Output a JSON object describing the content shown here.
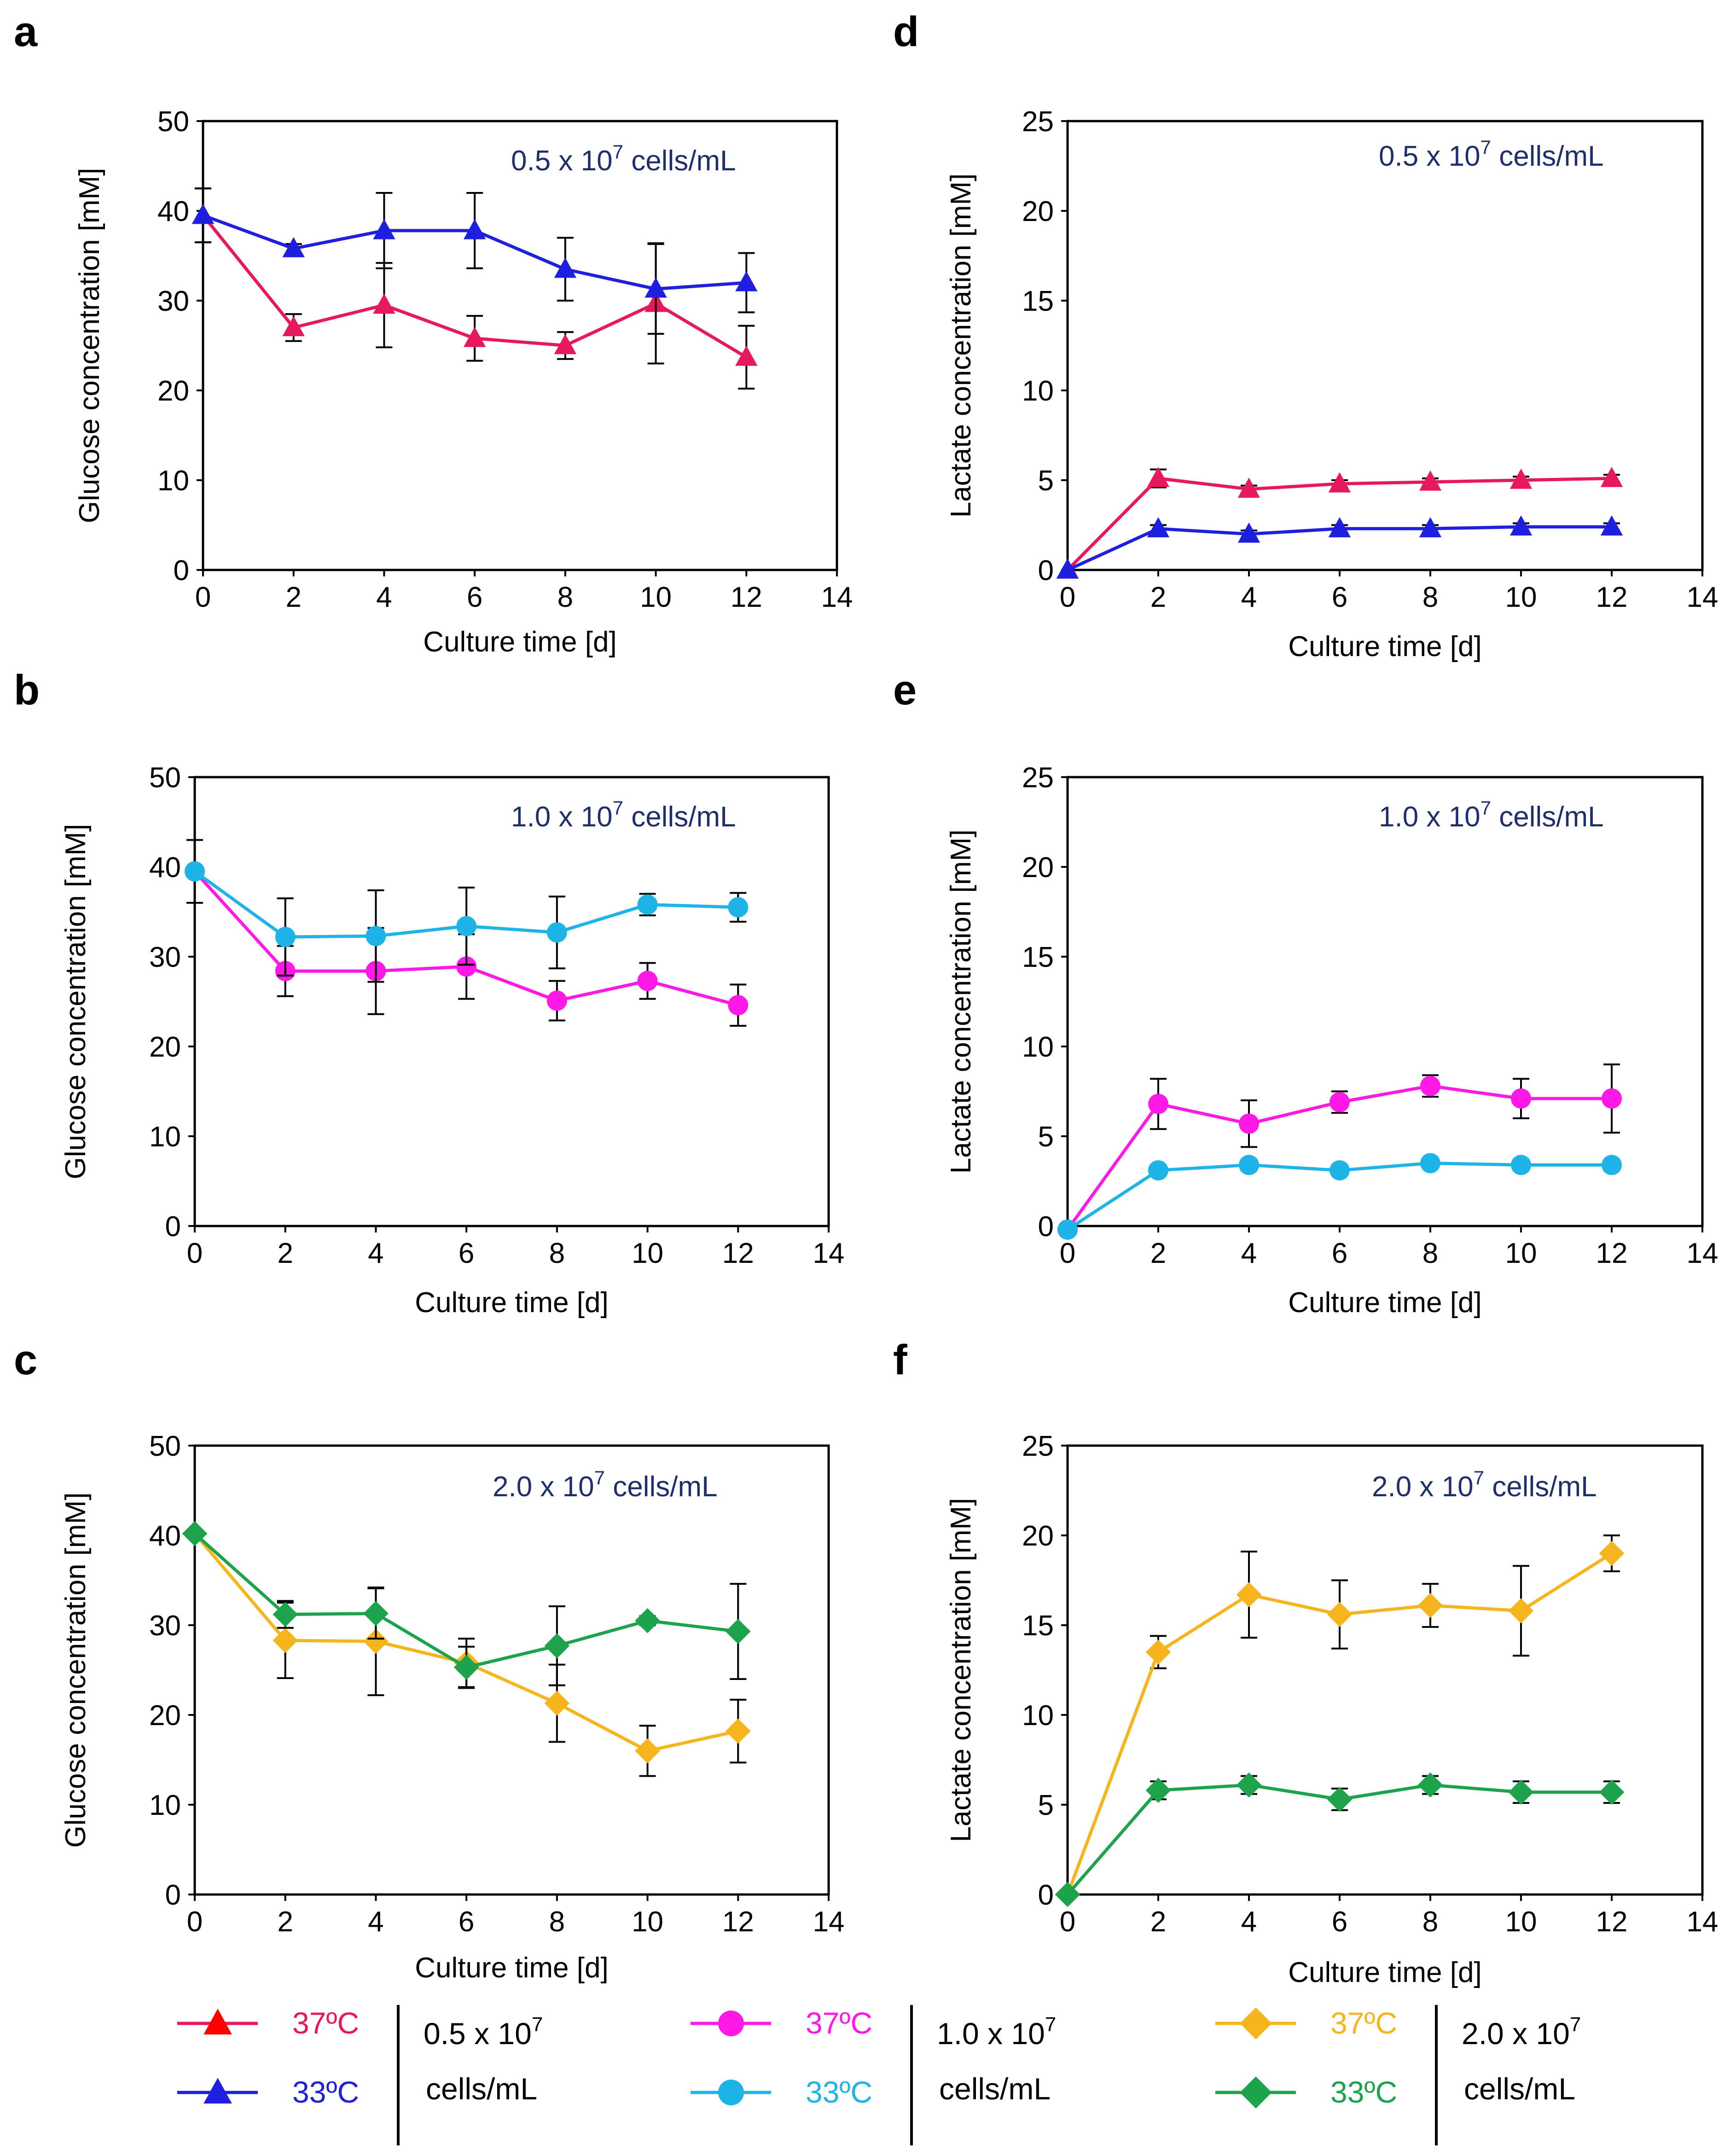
{
  "chart_data": [
    {
      "panel": "a",
      "type": "line",
      "ylabel": "Glucose concentration [mM]",
      "xlabel": "Culture time [d]",
      "xlim": [
        0,
        14
      ],
      "ylim": [
        0,
        50
      ],
      "xticks": [
        "0",
        "2",
        "4",
        "6",
        "8",
        "10",
        "12",
        "14"
      ],
      "yticks": [
        "0",
        "10",
        "20",
        "30",
        "40",
        "50"
      ],
      "annotation": {
        "num": "0.5 x 10",
        "exp": "7",
        "unit": " cells/mL"
      },
      "series": [
        {
          "name": "37ºC",
          "color": "#e8185f",
          "marker": "triangle",
          "x": [
            0,
            2,
            4,
            6,
            8,
            10,
            12
          ],
          "y": [
            39.5,
            27,
            29.5,
            25.8,
            25,
            29.7,
            23.7
          ],
          "err": [
            3,
            1.5,
            4.7,
            2.5,
            1.5,
            6.7,
            3.5
          ]
        },
        {
          "name": "33ºC",
          "color": "#1f1fe0",
          "marker": "triangle",
          "x": [
            0,
            2,
            4,
            6,
            8,
            10,
            12
          ],
          "y": [
            39.5,
            35.8,
            37.8,
            37.8,
            33.5,
            31.3,
            32
          ],
          "err": [
            3,
            0.5,
            4.2,
            4.2,
            3.5,
            5,
            3.3
          ]
        }
      ]
    },
    {
      "panel": "b",
      "type": "line",
      "ylabel": "Glucose concentration [mM]",
      "xlabel": "Culture time [d]",
      "xlim": [
        0,
        14
      ],
      "ylim": [
        0,
        50
      ],
      "xticks": [
        "0",
        "2",
        "4",
        "6",
        "8",
        "10",
        "12",
        "14"
      ],
      "yticks": [
        "0",
        "10",
        "20",
        "30",
        "40",
        "50"
      ],
      "annotation": {
        "num": "1.0 x 10",
        "exp": "7",
        "unit": " cells/mL"
      },
      "series": [
        {
          "name": "37ºC",
          "color": "#ff19e6",
          "marker": "circle",
          "x": [
            0,
            2,
            4,
            6,
            8,
            10,
            12
          ],
          "y": [
            39.5,
            28.4,
            28.4,
            28.9,
            25.1,
            27.3,
            24.6
          ],
          "err": [
            3.5,
            2.8,
            4.8,
            3.6,
            2.2,
            2,
            2.3
          ]
        },
        {
          "name": "33ºC",
          "color": "#1eb4e8",
          "marker": "circle",
          "x": [
            0,
            2,
            4,
            6,
            8,
            10,
            12
          ],
          "y": [
            39.5,
            32.2,
            32.3,
            33.4,
            32.7,
            35.8,
            35.5
          ],
          "err": [
            3.5,
            4.3,
            5.1,
            4.3,
            4,
            1.2,
            1.6
          ]
        }
      ]
    },
    {
      "panel": "c",
      "type": "line",
      "ylabel": "Glucose concentration [mM]",
      "xlabel": "Culture time [d]",
      "xlim": [
        0,
        14
      ],
      "ylim": [
        0,
        50
      ],
      "xticks": [
        "0",
        "2",
        "4",
        "6",
        "8",
        "10",
        "12",
        "14"
      ],
      "yticks": [
        "0",
        "10",
        "20",
        "30",
        "40",
        "50"
      ],
      "annotation": {
        "num": "2.0 x 10",
        "exp": "7",
        "unit": " cells/mL"
      },
      "series": [
        {
          "name": "37ºC",
          "color": "#f7b51d",
          "marker": "diamond",
          "x": [
            0,
            2,
            4,
            6,
            8,
            10,
            12
          ],
          "y": [
            40.2,
            28.3,
            28.2,
            25.8,
            21.3,
            16,
            18.2
          ],
          "err": [
            0,
            4.2,
            6,
            2.7,
            4.3,
            2.8,
            3.5
          ]
        },
        {
          "name": "33ºC",
          "color": "#1ea34d",
          "marker": "diamond",
          "x": [
            0,
            2,
            4,
            6,
            8,
            10,
            12
          ],
          "y": [
            40.2,
            31.2,
            31.3,
            25.3,
            27.7,
            30.5,
            29.3
          ],
          "err": [
            0,
            1.5,
            2.8,
            2.3,
            4.4,
            0.5,
            5.3
          ]
        }
      ]
    },
    {
      "panel": "d",
      "type": "line",
      "ylabel": "Lactate concentration [mM]",
      "xlabel": "Culture time [d]",
      "xlim": [
        0,
        14
      ],
      "ylim": [
        0,
        25
      ],
      "xticks": [
        "0",
        "2",
        "4",
        "6",
        "8",
        "10",
        "12",
        "14"
      ],
      "yticks": [
        "0",
        "5",
        "10",
        "15",
        "20",
        "25"
      ],
      "annotation": {
        "num": "0.5 x 10",
        "exp": "7",
        "unit": " cells/mL"
      },
      "series": [
        {
          "name": "37ºC",
          "color": "#e8185f",
          "marker": "triangle",
          "x": [
            0,
            2,
            4,
            6,
            8,
            10,
            12
          ],
          "y": [
            0,
            5.1,
            4.5,
            4.8,
            4.9,
            5,
            5.1
          ],
          "err": [
            0,
            0.5,
            0.2,
            0.2,
            0.2,
            0.2,
            0.2
          ]
        },
        {
          "name": "33ºC",
          "color": "#1f1fe0",
          "marker": "triangle",
          "x": [
            0,
            2,
            4,
            6,
            8,
            10,
            12
          ],
          "y": [
            0,
            2.3,
            2,
            2.3,
            2.3,
            2.4,
            2.4
          ],
          "err": [
            0,
            0.2,
            0.2,
            0.2,
            0.2,
            0.2,
            0.2
          ]
        }
      ]
    },
    {
      "panel": "e",
      "type": "line",
      "ylabel": "Lactate concentration [mM]",
      "xlabel": "Culture time [d]",
      "xlim": [
        0,
        14
      ],
      "ylim": [
        0,
        25
      ],
      "xticks": [
        "0",
        "2",
        "4",
        "6",
        "8",
        "10",
        "12",
        "14"
      ],
      "yticks": [
        "0",
        "5",
        "10",
        "15",
        "20",
        "25"
      ],
      "annotation": {
        "num": "1.0 x 10",
        "exp": "7",
        "unit": " cells/mL"
      },
      "series": [
        {
          "name": "37ºC",
          "color": "#ff19e6",
          "marker": "circle",
          "x": [
            0,
            2,
            4,
            6,
            8,
            10,
            12
          ],
          "y": [
            -0.2,
            6.8,
            5.7,
            6.9,
            7.8,
            7.1,
            7.1
          ],
          "err": [
            0,
            1.4,
            1.3,
            0.6,
            0.6,
            1.1,
            1.9
          ]
        },
        {
          "name": "33ºC",
          "color": "#1eb4e8",
          "marker": "circle",
          "x": [
            0,
            2,
            4,
            6,
            8,
            10,
            12
          ],
          "y": [
            -0.2,
            3.1,
            3.4,
            3.1,
            3.5,
            3.4,
            3.4
          ],
          "err": [
            0,
            0.2,
            0.3,
            0.2,
            0.2,
            0.3,
            0.3
          ]
        }
      ]
    },
    {
      "panel": "f",
      "type": "line",
      "ylabel": "Lactate concentration [mM]",
      "xlabel": "Culture time [d]",
      "xlim": [
        0,
        14
      ],
      "ylim": [
        0,
        25
      ],
      "xticks": [
        "0",
        "2",
        "4",
        "6",
        "8",
        "10",
        "12",
        "14"
      ],
      "yticks": [
        "0",
        "5",
        "10",
        "15",
        "20",
        "25"
      ],
      "annotation": {
        "num": "2.0 x 10",
        "exp": "7",
        "unit": " cells/mL"
      },
      "series": [
        {
          "name": "37ºC",
          "color": "#f7b51d",
          "marker": "diamond",
          "x": [
            0,
            2,
            4,
            6,
            8,
            10,
            12
          ],
          "y": [
            0,
            13.5,
            16.7,
            15.6,
            16.1,
            15.8,
            19
          ],
          "err": [
            0,
            0.9,
            2.4,
            1.9,
            1.2,
            2.5,
            1
          ]
        },
        {
          "name": "33ºC",
          "color": "#1ea34d",
          "marker": "diamond",
          "x": [
            0,
            2,
            4,
            6,
            8,
            10,
            12
          ],
          "y": [
            0,
            5.8,
            6.1,
            5.3,
            6.1,
            5.7,
            5.7
          ],
          "err": [
            0,
            0.5,
            0.5,
            0.6,
            0.5,
            0.6,
            0.6
          ]
        }
      ]
    }
  ],
  "legend": [
    {
      "density": {
        "line1": "0.5 x 10",
        "exp": "7",
        "line2": "cells/mL"
      },
      "items": [
        {
          "label": "37ºC",
          "color": "#e8185f",
          "marker_color": "#ff0000",
          "marker": "triangle"
        },
        {
          "label": "33ºC",
          "color": "#1f1fe0",
          "marker_color": "#1f1fe0",
          "marker": "triangle"
        }
      ]
    },
    {
      "density": {
        "line1": "1.0 x 10",
        "exp": "7",
        "line2": "cells/mL"
      },
      "items": [
        {
          "label": "37ºC",
          "color": "#ff19e6",
          "marker_color": "#ff19e6",
          "marker": "circle"
        },
        {
          "label": "33ºC",
          "color": "#1eb4e8",
          "marker_color": "#1eb4e8",
          "marker": "circle"
        }
      ]
    },
    {
      "density": {
        "line1": "2.0 x 10",
        "exp": "7",
        "line2": "cells/mL"
      },
      "items": [
        {
          "label": "37ºC",
          "color": "#f7b51d",
          "marker_color": "#f7b51d",
          "marker": "diamond"
        },
        {
          "label": "33ºC",
          "color": "#1ea34d",
          "marker_color": "#1ea34d",
          "marker": "diamond"
        }
      ]
    }
  ]
}
